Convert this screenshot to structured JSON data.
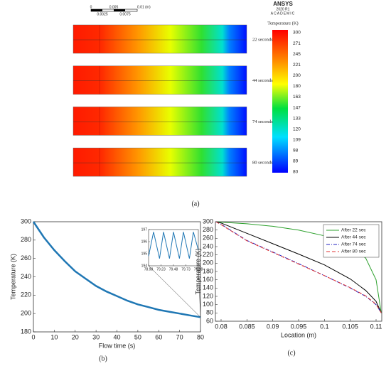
{
  "panel_a": {
    "scale_labels": [
      "0",
      "0.005",
      "0.01 (m)",
      "0.0025",
      "0.0075"
    ],
    "logo": "ANSYS",
    "version": "2020 R1",
    "edition": "ACADEMIC",
    "colorbar_title": "Temperature (K)",
    "colorbar_labels": [
      "300",
      "271",
      "245",
      "221",
      "200",
      "180",
      "163",
      "147",
      "133",
      "120",
      "109",
      "98",
      "89",
      "80"
    ],
    "snapshots": [
      "22 seconds",
      "44 seconds",
      "74 seconds",
      "80 seconds"
    ],
    "panel_label": "(a)"
  },
  "chart_data": [
    {
      "type": "line",
      "panel_label": "(b)",
      "xlabel": "Flow time (s)",
      "ylabel": "Temperature (K)",
      "x": [
        0,
        5,
        10,
        15,
        20,
        25,
        30,
        35,
        40,
        45,
        50,
        55,
        60,
        65,
        70,
        75,
        80
      ],
      "values": [
        300,
        283,
        269,
        257,
        246,
        238,
        230,
        224,
        219,
        214,
        210,
        207,
        204,
        202,
        200,
        198,
        196
      ],
      "color": "#1f77b4",
      "xlim": [
        0,
        80
      ],
      "ylim": [
        180,
        300
      ],
      "xticks": [
        0,
        10,
        20,
        30,
        40,
        50,
        60,
        70,
        80
      ],
      "yticks": [
        180,
        200,
        220,
        240,
        260,
        280,
        300
      ],
      "inset": {
        "x": [
          78.98,
          79.08,
          79.2,
          79.28,
          79.4,
          79.48,
          79.6,
          79.68,
          79.8,
          79.88,
          79.98
        ],
        "values": [
          194.8,
          196.8,
          194.6,
          196.8,
          194.6,
          196.8,
          194.6,
          196.8,
          194.6,
          196.8,
          195.3
        ],
        "xlim": [
          78.98,
          79.98
        ],
        "ylim": [
          194,
          197
        ],
        "xticks": [
          78.98,
          79.23,
          79.48,
          79.73,
          79.98
        ],
        "yticks": [
          194,
          195,
          196,
          197
        ]
      }
    },
    {
      "type": "line",
      "panel_label": "(c)",
      "xlabel": "Location (m)",
      "ylabel": "Temperature (K)",
      "x": [
        0.079,
        0.08,
        0.085,
        0.09,
        0.095,
        0.1,
        0.105,
        0.108,
        0.11,
        0.111
      ],
      "series": [
        {
          "name": "After 22 sec",
          "color": "#2ca02c",
          "dash": "none",
          "values": [
            300,
            299,
            295,
            289,
            280,
            266,
            242,
            212,
            160,
            80
          ]
        },
        {
          "name": "After 44 sec",
          "color": "#000000",
          "dash": "none",
          "values": [
            300,
            297,
            272,
            247,
            222,
            196,
            162,
            134,
            108,
            80
          ]
        },
        {
          "name": "After 74 sec",
          "color": "#2020c0",
          "dash": "5 2 1 2",
          "values": [
            300,
            294,
            255,
            227,
            199,
            170,
            140,
            120,
            100,
            80
          ]
        },
        {
          "name": "After 80 sec",
          "color": "#e03030",
          "dash": "5 3",
          "values": [
            300,
            293,
            254,
            226,
            198,
            170,
            141,
            121,
            101,
            80
          ]
        }
      ],
      "xlim": [
        0.0789,
        0.1111
      ],
      "ylim": [
        60,
        300
      ],
      "xticks": [
        0.08,
        0.085,
        0.09,
        0.095,
        0.1,
        0.105,
        0.11
      ],
      "yticks": [
        60,
        80,
        100,
        120,
        140,
        160,
        180,
        200,
        220,
        240,
        260,
        280,
        300
      ],
      "legend": "upper right"
    }
  ]
}
